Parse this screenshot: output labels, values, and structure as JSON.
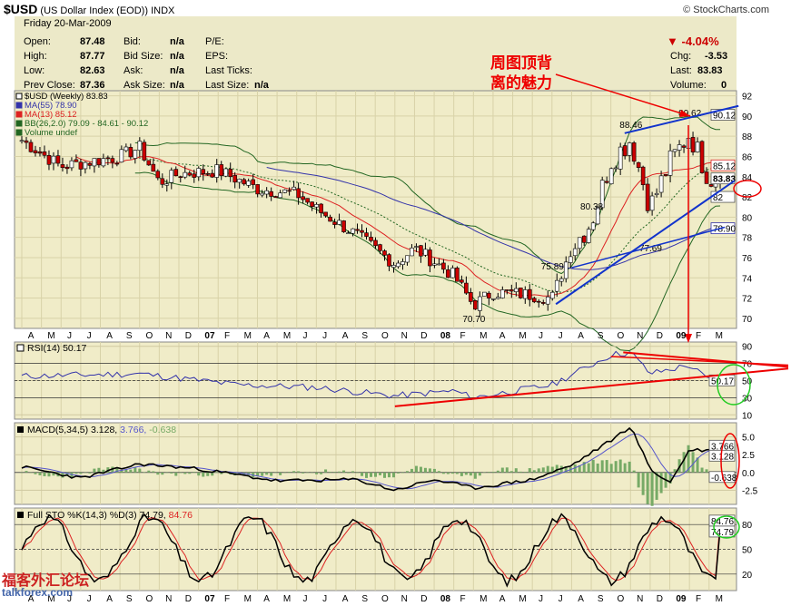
{
  "header": {
    "symbol": "$USD",
    "name": "(US Dollar Index (EOD))",
    "exchange": "INDX",
    "credit": "© StockCharts.com"
  },
  "info": {
    "date": "Friday  20-Mar-2009",
    "change_pct": "-4.04%",
    "rows": [
      {
        "l1": "Open:",
        "v1": "87.48",
        "l2": "Bid:",
        "v2": "n/a",
        "l3": "P/E:",
        "v3": "",
        "l4": "Chg:",
        "v4": "-3.53"
      },
      {
        "l1": "High:",
        "v1": "87.77",
        "l2": "Bid Size:",
        "v2": "n/a",
        "l3": "EPS:",
        "v3": "",
        "l4": "Last:",
        "v4": "83.83"
      },
      {
        "l1": "Low:",
        "v1": "82.63",
        "l2": "Ask:",
        "v2": "n/a",
        "l3": "Last Ticks:",
        "v3": "",
        "l4": "Volume:",
        "v4": "0"
      },
      {
        "l1": "Prev Close:",
        "v1": "87.36",
        "l2": "Ask Size:",
        "v2": "n/a",
        "l3": "Last Size:",
        "v3": "n/a",
        "l4": "",
        "v4": ""
      }
    ]
  },
  "annotation": {
    "line1": "周图顶背",
    "line2": "离的魅力"
  },
  "watermark": {
    "line1": "福客外汇论坛",
    "line2": "talkforex.com"
  },
  "colors": {
    "panel_bg": "#f0ecc8",
    "up_candle": "#00aa00",
    "down_candle": "#cc0000",
    "ma55": "#3333aa",
    "ma13": "#dd2222",
    "bb": "#226622",
    "annotation_red": "#ee0000",
    "trend_blue": "#1133cc"
  },
  "chart_data": [
    {
      "type": "candlestick",
      "title": "$USD (Weekly) 83.83",
      "legend": [
        "$USD (Weekly) 83.83",
        "MA(55) 78.90",
        "MA(13) 85.12",
        "BB(26,2.0) 79.09 - 84.61 - 90.12",
        "Volume undef"
      ],
      "legend_placement": "top-left",
      "x_tick_labels": [
        "A",
        "M",
        "J",
        "J",
        "A",
        "S",
        "O",
        "N",
        "D",
        "07",
        "F",
        "M",
        "A",
        "M",
        "J",
        "J",
        "A",
        "S",
        "O",
        "N",
        "D",
        "08",
        "F",
        "M",
        "A",
        "M",
        "J",
        "J",
        "A",
        "S",
        "O",
        "N",
        "D",
        "09",
        "F",
        "M"
      ],
      "y_ticks": [
        70,
        72,
        74,
        76,
        78,
        80,
        82,
        84,
        86,
        88,
        90,
        92
      ],
      "ylim": [
        69,
        92.5
      ],
      "close_key_points": [
        {
          "x": "2006-Apr",
          "y": 87.6
        },
        {
          "x": "2006-Jun",
          "y": 85.0
        },
        {
          "x": "2006-Sep",
          "y": 86.0
        },
        {
          "x": "2006-Oct",
          "y": 86.9
        },
        {
          "x": "2006-Nov",
          "y": 83.4
        },
        {
          "x": "2006-Dec",
          "y": 84.3
        },
        {
          "x": "2007-Feb",
          "y": 84.6
        },
        {
          "x": "2007-Apr",
          "y": 82.8
        },
        {
          "x": "2007-Jun",
          "y": 82.3
        },
        {
          "x": "2007-Jul",
          "y": 80.8
        },
        {
          "x": "2007-Sep",
          "y": 78.3
        },
        {
          "x": "2007-Nov",
          "y": 75.4
        },
        {
          "x": "2007-Dec",
          "y": 76.9
        },
        {
          "x": "2008-Jan",
          "y": 75.6
        },
        {
          "x": "2008-Feb",
          "y": 74.2
        },
        {
          "x": "2008-Mar",
          "y": 71.3
        },
        {
          "x": "2008-Apr",
          "y": 72.6
        },
        {
          "x": "2008-Jun",
          "y": 72.3
        },
        {
          "x": "2008-Jul",
          "y": 72.0
        },
        {
          "x": "2008-Aug",
          "y": 77.0
        },
        {
          "x": "2008-Sep",
          "y": 79.5
        },
        {
          "x": "2008-Oct",
          "y": 85.6
        },
        {
          "x": "2008-Nov",
          "y": 87.7
        },
        {
          "x": "2008-Dec",
          "y": 81.0
        },
        {
          "x": "2009-Jan",
          "y": 85.4
        },
        {
          "x": "2009-Feb",
          "y": 88.3
        },
        {
          "x": "2009-Mar",
          "y": 83.83
        }
      ],
      "point_labels": [
        {
          "x": "2008-Mar",
          "y": 70.7,
          "label": "70.70"
        },
        {
          "x": "2008-Jul",
          "y": 75.89,
          "label": "75.89"
        },
        {
          "x": "2008-Sep",
          "y": 80.38,
          "label": "80.38"
        },
        {
          "x": "2008-Nov",
          "y": 88.46,
          "label": "88.46"
        },
        {
          "x": "2008-Dec",
          "y": 77.69,
          "label": "77.69"
        },
        {
          "x": "2009-Feb",
          "y": 89.62,
          "label": "89.62"
        }
      ],
      "right_markers": [
        {
          "value": 90.12,
          "label": "90.12"
        },
        {
          "value": 85.12,
          "label": "85.12"
        },
        {
          "value": 83.83,
          "label": "83.83"
        },
        {
          "value": 82,
          "label": "82"
        },
        {
          "value": 78.9,
          "label": "78.90"
        }
      ]
    },
    {
      "type": "line",
      "title": "RSI(14) 50.17",
      "y_ticks": [
        10,
        30,
        50,
        70,
        90
      ],
      "ylim": [
        5,
        95
      ],
      "last_value": 50.17,
      "right_label": "50.17",
      "key_points": [
        {
          "x": "2006-Apr",
          "y": 55
        },
        {
          "x": "2006-Oct",
          "y": 58
        },
        {
          "x": "2007-Mar",
          "y": 45
        },
        {
          "x": "2007-Jul",
          "y": 42
        },
        {
          "x": "2007-Nov",
          "y": 32
        },
        {
          "x": "2008-Feb",
          "y": 38
        },
        {
          "x": "2008-Mar",
          "y": 30
        },
        {
          "x": "2008-Jul",
          "y": 45
        },
        {
          "x": "2008-Oct",
          "y": 80
        },
        {
          "x": "2008-Nov",
          "y": 83
        },
        {
          "x": "2008-Dec",
          "y": 58
        },
        {
          "x": "2009-Feb",
          "y": 68
        },
        {
          "x": "2009-Mar",
          "y": 50.17
        }
      ]
    },
    {
      "type": "line",
      "title": "MACD(5,34,5) 3.128, 3.766, -0.638",
      "series": [
        {
          "name": "MACD(5,34,5)",
          "value": 3.128
        },
        {
          "name": "Signal",
          "value": 3.766
        },
        {
          "name": "Histogram",
          "value": -0.638
        }
      ],
      "y_ticks": [
        -2.5,
        0.0,
        2.5,
        5.0
      ],
      "ylim": [
        -4.5,
        7.0
      ],
      "right_labels": [
        "3.766",
        "3.128",
        "-0.638"
      ],
      "key_points": [
        {
          "x": "2006-Apr",
          "y": 0.8
        },
        {
          "x": "2006-Jul",
          "y": -0.8
        },
        {
          "x": "2006-Oct",
          "y": 1.2
        },
        {
          "x": "2007-Jan",
          "y": 0.5
        },
        {
          "x": "2007-May",
          "y": -1.2
        },
        {
          "x": "2007-Sep",
          "y": -1.0
        },
        {
          "x": "2007-Nov",
          "y": -2.5
        },
        {
          "x": "2008-Jan",
          "y": -1.0
        },
        {
          "x": "2008-Mar",
          "y": -2.2
        },
        {
          "x": "2008-Jun",
          "y": -1.0
        },
        {
          "x": "2008-Aug",
          "y": 1.0
        },
        {
          "x": "2008-Oct",
          "y": 4.5
        },
        {
          "x": "2008-Nov",
          "y": 6.5
        },
        {
          "x": "2008-Dec",
          "y": 0.5
        },
        {
          "x": "2009-Jan",
          "y": -1.5
        },
        {
          "x": "2009-Feb",
          "y": 3.2
        },
        {
          "x": "2009-Mar",
          "y": 3.128
        }
      ]
    },
    {
      "type": "line",
      "title": "Full STO %K(14,3) %D(3) 74.79, 84.76",
      "series": [
        {
          "name": "%K(14,3)",
          "value": 74.79
        },
        {
          "name": "%D(3)",
          "value": 84.76
        }
      ],
      "y_ticks": [
        20,
        50,
        80
      ],
      "ylim": [
        0,
        100
      ],
      "right_labels": [
        "84.76",
        "74.79"
      ],
      "x_tick_labels": [
        "A",
        "M",
        "J",
        "J",
        "A",
        "S",
        "O",
        "N",
        "D",
        "07",
        "F",
        "M",
        "A",
        "M",
        "J",
        "J",
        "A",
        "S",
        "O",
        "N",
        "D",
        "08",
        "F",
        "M",
        "A",
        "M",
        "J",
        "J",
        "A",
        "S",
        "O",
        "N",
        "D",
        "09",
        "F",
        "M"
      ]
    }
  ]
}
